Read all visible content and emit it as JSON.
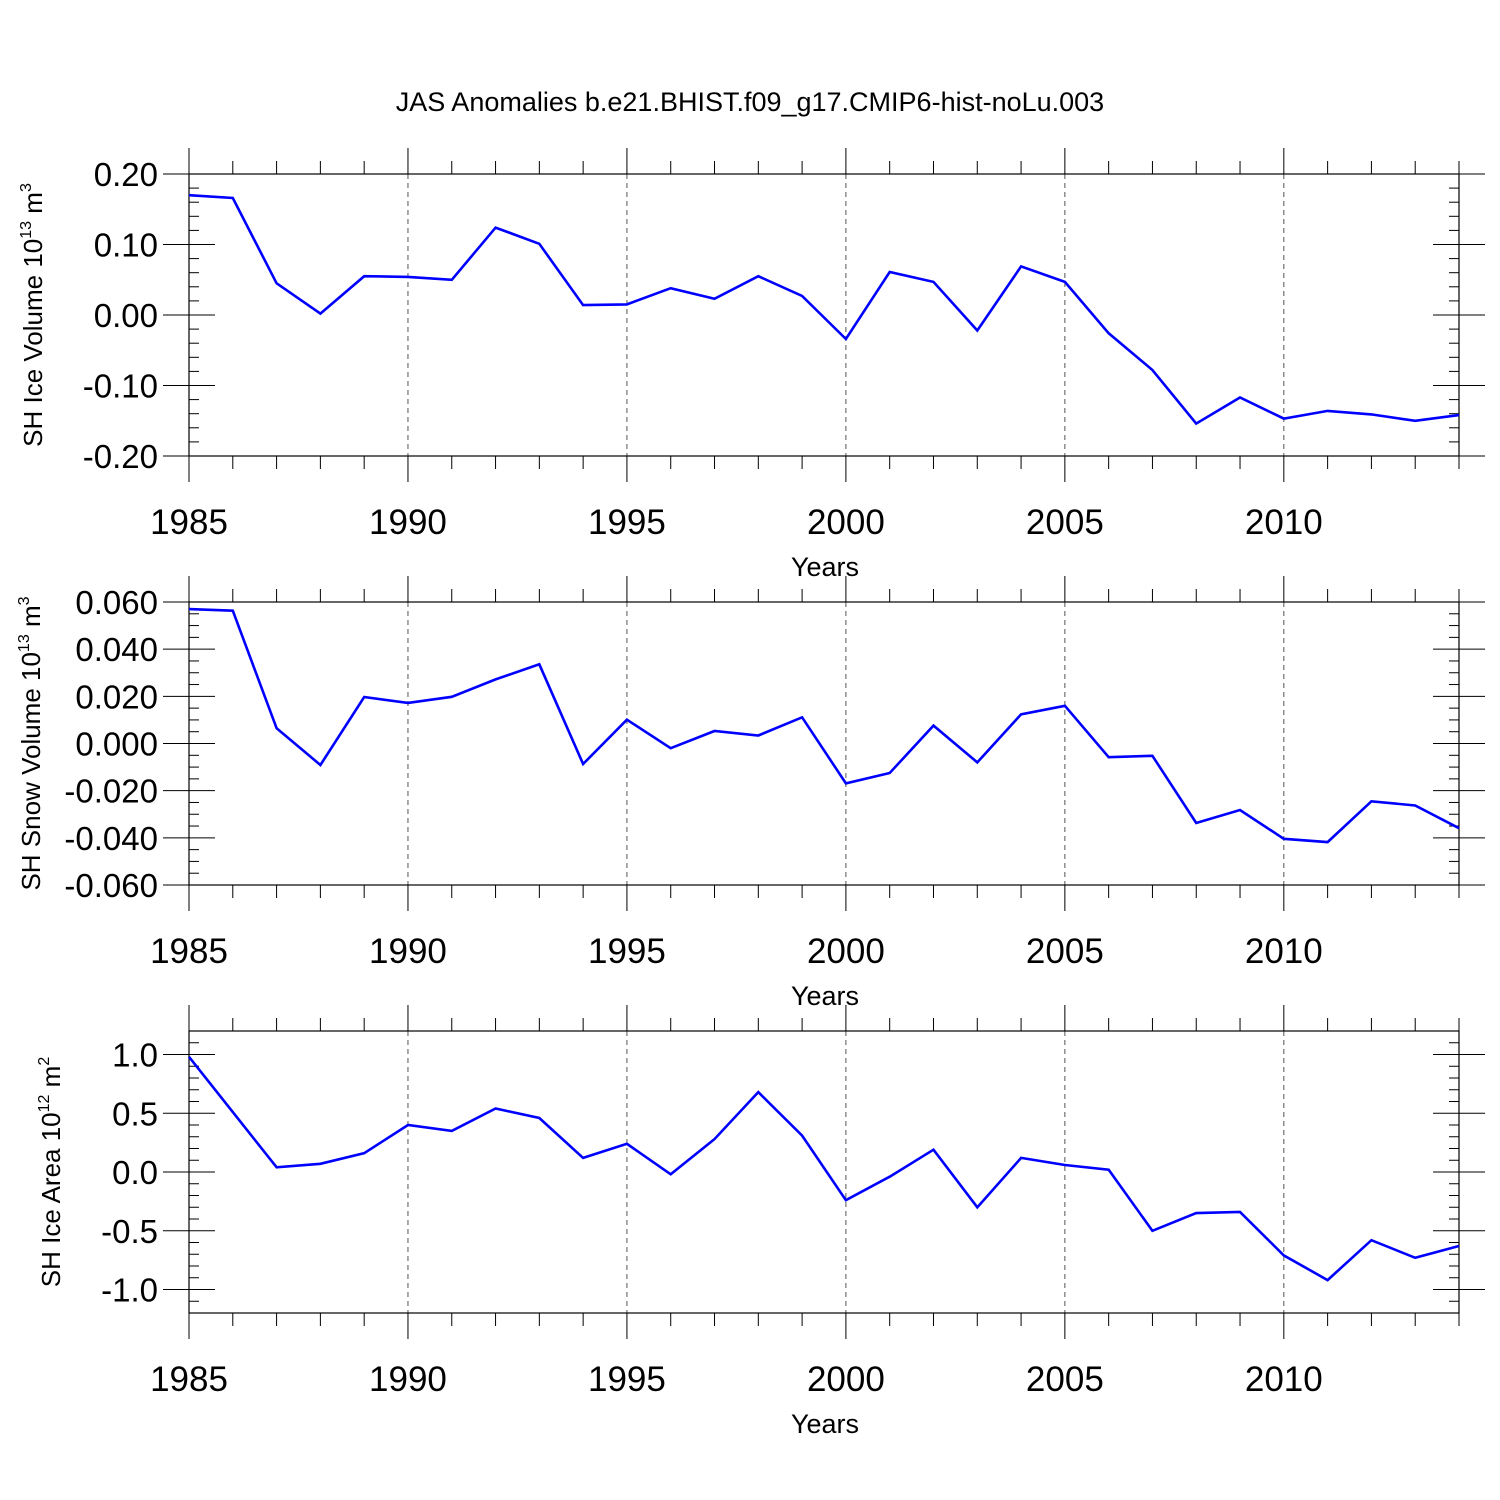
{
  "title": "JAS Anomalies b.e21.BHIST.f09_g17.CMIP6-hist-noLu.003",
  "line_color": "#0000ff",
  "chart_data": [
    {
      "type": "line",
      "ylabel_base": "SH Ice Volume 10",
      "ylabel_exp": "13",
      "ylabel_unit": " m",
      "ylabel_unit_exp": "3",
      "xlabel": "Years",
      "xlim": [
        1985,
        2014
      ],
      "ylim": [
        -0.2,
        0.2
      ],
      "y_ticks": [
        0.2,
        0.1,
        0.0,
        -0.1,
        -0.2
      ],
      "y_tick_labels": [
        "0.20",
        "0.10",
        "0.00",
        "-0.10",
        "-0.20"
      ],
      "y_minor_step": 0.02,
      "x_ticks": [
        1985,
        1990,
        1995,
        2000,
        2005,
        2010
      ],
      "x_tick_labels": [
        "1985",
        "1990",
        "1995",
        "2000",
        "2005",
        "2010"
      ],
      "x": [
        1985,
        1986,
        1987,
        1988,
        1989,
        1990,
        1991,
        1992,
        1993,
        1994,
        1995,
        1996,
        1997,
        1998,
        1999,
        2000,
        2001,
        2002,
        2003,
        2004,
        2005,
        2006,
        2007,
        2008,
        2009,
        2010,
        2011,
        2012,
        2013,
        2014
      ],
      "values": [
        0.17,
        0.166,
        0.045,
        0.002,
        0.055,
        0.054,
        0.05,
        0.124,
        0.101,
        0.014,
        0.015,
        0.038,
        0.023,
        0.055,
        0.027,
        -0.034,
        0.061,
        0.047,
        -0.022,
        0.069,
        0.047,
        -0.026,
        -0.078,
        -0.154,
        -0.117,
        -0.147,
        -0.136,
        -0.141,
        -0.15,
        -0.142
      ]
    },
    {
      "type": "line",
      "ylabel_base": "SH Snow Volume 10",
      "ylabel_exp": "13",
      "ylabel_unit": " m",
      "ylabel_unit_exp": "3",
      "xlabel": "Years",
      "xlim": [
        1985,
        2014
      ],
      "ylim": [
        -0.06,
        0.06
      ],
      "y_ticks": [
        0.06,
        0.04,
        0.02,
        0.0,
        -0.02,
        -0.04,
        -0.06
      ],
      "y_tick_labels": [
        "0.060",
        "0.040",
        "0.020",
        "0.000",
        "-0.020",
        "-0.040",
        "-0.060"
      ],
      "y_minor_step": 0.005,
      "x_ticks": [
        1985,
        1990,
        1995,
        2000,
        2005,
        2010
      ],
      "x_tick_labels": [
        "1985",
        "1990",
        "1995",
        "2000",
        "2005",
        "2010"
      ],
      "x": [
        1985,
        1986,
        1987,
        1988,
        1989,
        1990,
        1991,
        1992,
        1993,
        1994,
        1995,
        1996,
        1997,
        1998,
        1999,
        2000,
        2001,
        2002,
        2003,
        2004,
        2005,
        2006,
        2007,
        2008,
        2009,
        2010,
        2011,
        2012,
        2013,
        2014
      ],
      "values": [
        0.057,
        0.0563,
        0.0065,
        -0.0091,
        0.0197,
        0.0172,
        0.0198,
        0.0272,
        0.0336,
        -0.0087,
        0.0101,
        -0.002,
        0.0053,
        0.0034,
        0.0111,
        -0.0169,
        -0.0125,
        0.0076,
        -0.008,
        0.0124,
        0.016,
        -0.0058,
        -0.0052,
        -0.0337,
        -0.0282,
        -0.0404,
        -0.0418,
        -0.0245,
        -0.0263,
        -0.0359
      ]
    },
    {
      "type": "line",
      "ylabel_base": "SH Ice Area 10",
      "ylabel_exp": "12",
      "ylabel_unit": " m",
      "ylabel_unit_exp": "2",
      "xlabel": "Years",
      "xlim": [
        1985,
        2014
      ],
      "ylim": [
        -1.2,
        1.2
      ],
      "y_ticks": [
        1.0,
        0.5,
        0.0,
        -0.5,
        -1.0
      ],
      "y_tick_labels": [
        "1.0",
        "0.5",
        "0.0",
        "-0.5",
        "-1.0"
      ],
      "y_minor_step": 0.1,
      "x_ticks": [
        1985,
        1990,
        1995,
        2000,
        2005,
        2010
      ],
      "x_tick_labels": [
        "1985",
        "1990",
        "1995",
        "2000",
        "2005",
        "2010"
      ],
      "x": [
        1985,
        1986,
        1987,
        1988,
        1989,
        1990,
        1991,
        1992,
        1993,
        1994,
        1995,
        1996,
        1997,
        1998,
        1999,
        2000,
        2001,
        2002,
        2003,
        2004,
        2005,
        2006,
        2007,
        2008,
        2009,
        2010,
        2011,
        2012,
        2013,
        2014
      ],
      "values": [
        0.98,
        0.51,
        0.04,
        0.07,
        0.16,
        0.4,
        0.35,
        0.54,
        0.46,
        0.12,
        0.24,
        -0.02,
        0.28,
        0.68,
        0.31,
        -0.24,
        -0.04,
        0.19,
        -0.3,
        0.12,
        0.06,
        0.02,
        -0.5,
        -0.35,
        -0.34,
        -0.71,
        -0.92,
        -0.58,
        -0.73,
        -0.63
      ]
    }
  ]
}
